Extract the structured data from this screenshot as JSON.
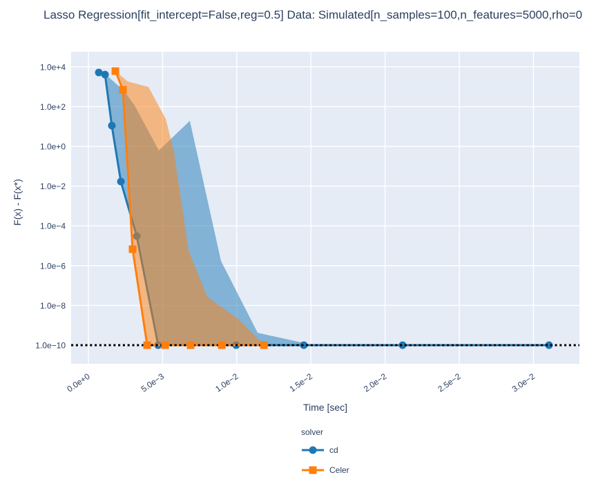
{
  "title": "Lasso Regression[fit_intercept=False,reg=0.5] Data: Simulated[n_samples=100,n_features=5000,rho=0",
  "colors": {
    "cd": "#1f77b4",
    "celer": "#ff7f0e",
    "plot_background": "#e5ecf6",
    "gridline": "#ffffff",
    "font": "#2a3f5f",
    "baseline_line": "#000000",
    "page_background": "#ffffff"
  },
  "chart_data": {
    "type": "line",
    "title": "Lasso Regression[fit_intercept=False,reg=0.5] Data: Simulated[n_samples=100,n_features=5000,rho=0",
    "xlabel": "Time [sec]",
    "ylabel": "F(x) - F(x*)",
    "x_scale": "linear",
    "y_scale": "log",
    "grid": true,
    "x_range": [
      -0.00116,
      0.0331
    ],
    "y_range_log10": [
      -10.94,
      4.76
    ],
    "x_ticks": {
      "values": [
        0,
        0.005,
        0.01,
        0.015,
        0.02,
        0.025,
        0.03
      ],
      "labels": [
        "0.0e+0",
        "5.0e−3",
        "1.0e−2",
        "1.5e−2",
        "2.0e−2",
        "2.5e−2",
        "3.0e−2"
      ]
    },
    "y_ticks": {
      "values": [
        10000.0,
        100.0,
        1.0,
        0.01,
        0.0001,
        1e-06,
        1e-08,
        1e-10
      ],
      "labels": [
        "1.0e+4",
        "1.0e+2",
        "1.0e+0",
        "1.0e−2",
        "1.0e−4",
        "1.0e−6",
        "1.0e−8",
        "1.0e−10"
      ]
    },
    "baseline": {
      "value": 1e-10,
      "style": "dotted",
      "color": "#000000"
    },
    "legend": {
      "title": "solver",
      "position": "bottom-center",
      "entries": [
        {
          "label": "cd",
          "marker": "circle",
          "color": "#1f77b4"
        },
        {
          "label": "Celer",
          "marker": "square",
          "color": "#ff7f0e"
        }
      ]
    },
    "series": [
      {
        "name": "cd",
        "color": "#1f77b4",
        "marker": "circle",
        "points": [
          [
            0.0007,
            5200
          ],
          [
            0.00112,
            4100
          ],
          [
            0.00158,
            11
          ],
          [
            0.00219,
            0.017
          ],
          [
            0.00326,
            3.06e-05
          ],
          [
            0.0047,
            1e-10
          ],
          [
            0.00996,
            1e-10
          ],
          [
            0.01452,
            1e-10
          ],
          [
            0.02118,
            1e-10
          ],
          [
            0.03105,
            1e-10
          ]
        ],
        "band": [
          [
            0.00112,
            4430
          ],
          [
            0.00242,
            600
          ],
          [
            0.00312,
            112
          ],
          [
            0.00475,
            0.62
          ],
          [
            0.00684,
            19.3
          ],
          [
            0.00894,
            1.72e-06
          ],
          [
            0.01141,
            4.2e-10
          ],
          [
            0.01522,
            1e-10
          ],
          [
            0.0047,
            1e-10
          ],
          [
            0.00326,
            3.06e-05
          ],
          [
            0.00219,
            0.017
          ],
          [
            0.00158,
            11
          ]
        ]
      },
      {
        "name": "Celer",
        "color": "#ff7f0e",
        "marker": "square",
        "points": [
          [
            0.00182,
            6100
          ],
          [
            0.00233,
            700
          ],
          [
            0.00298,
            6.7e-06
          ],
          [
            0.00396,
            1e-10
          ],
          [
            0.00517,
            1e-10
          ],
          [
            0.00689,
            1e-10
          ],
          [
            0.00899,
            1e-10
          ],
          [
            0.01183,
            1e-10
          ]
        ],
        "band": [
          [
            0.00182,
            6100
          ],
          [
            0.00265,
            1840
          ],
          [
            0.00405,
            970
          ],
          [
            0.00521,
            24.5
          ],
          [
            0.00577,
            0.53
          ],
          [
            0.00675,
            5.7e-06
          ],
          [
            0.00801,
            2.7e-08
          ],
          [
            0.0101,
            2.1e-09
          ],
          [
            0.01187,
            1e-10
          ],
          [
            0.00396,
            1e-10
          ],
          [
            0.00298,
            6.7e-06
          ],
          [
            0.00233,
            700
          ]
        ]
      }
    ]
  }
}
